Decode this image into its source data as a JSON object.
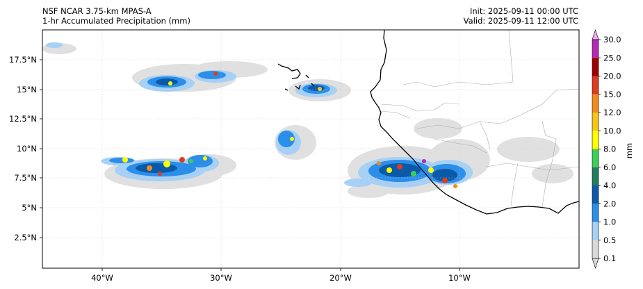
{
  "header": {
    "model": "NSF NCAR 3.75-km MPAS-A",
    "field": "1-hr Accumulated Precipitation (mm)",
    "init": "Init: 2025-09-11 00:00 UTC",
    "valid": "Valid: 2025-09-11 12:00 UTC"
  },
  "map": {
    "lat_labels": [
      "17.5°N",
      "15°N",
      "12.5°N",
      "10°N",
      "7.5°N",
      "5°N",
      "2.5°N"
    ],
    "lon_labels": [
      "40°W",
      "30°W",
      "20°W",
      "10°W"
    ],
    "lon_range": [
      -45,
      0
    ],
    "lat_range": [
      0,
      20
    ],
    "gridlines": true
  },
  "colorbar": {
    "label": "mm",
    "levels": [
      "0.1",
      "0.5",
      "1.0",
      "2.0",
      "4.0",
      "6.0",
      "8.0",
      "10.0",
      "12.0",
      "15.0",
      "20.0",
      "25.0",
      "30.0"
    ],
    "colors": [
      "#d9d9d9",
      "#a6d0f5",
      "#2b8ee8",
      "#0a5aa8",
      "#1f7d62",
      "#3ecf57",
      "#ffff00",
      "#f5c518",
      "#f08c1e",
      "#e03b1c",
      "#a00000",
      "#b52ab5",
      "#f7a8f0"
    ]
  }
}
